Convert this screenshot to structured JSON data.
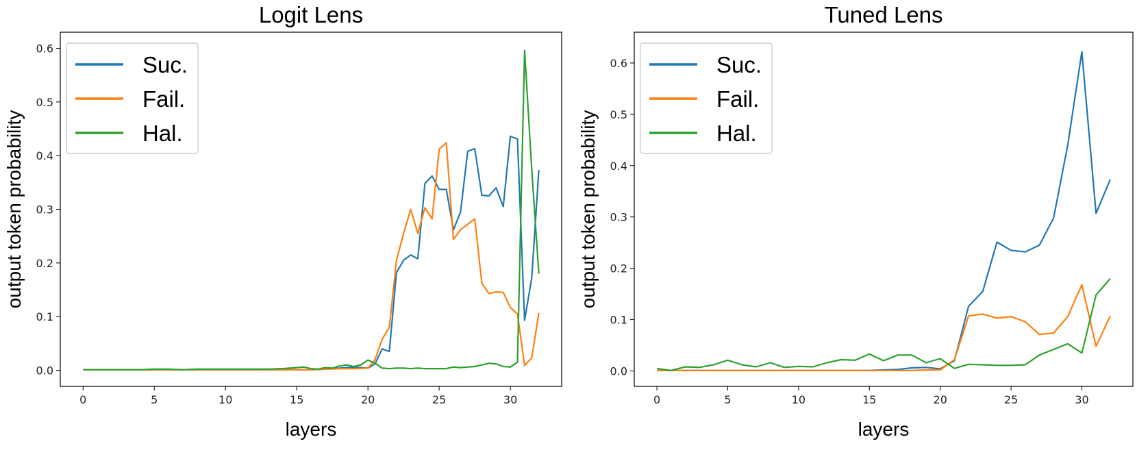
{
  "chart_data": [
    {
      "type": "line",
      "title": "Logit Lens",
      "xlabel": "layers",
      "ylabel": "output token probability",
      "xlim": [
        -1.6,
        33.6
      ],
      "ylim": [
        -0.03,
        0.63
      ],
      "xticks": [
        0,
        5,
        10,
        15,
        20,
        25,
        30
      ],
      "xtick_labels": [
        "0",
        "5",
        "10",
        "15",
        "20",
        "25",
        "30"
      ],
      "yticks": [
        0.0,
        0.1,
        0.2,
        0.3,
        0.4,
        0.5,
        0.6
      ],
      "ytick_labels": [
        "0.0",
        "0.1",
        "0.2",
        "0.3",
        "0.4",
        "0.5",
        "0.6"
      ],
      "grid": false,
      "legend": "upper-left",
      "series": [
        {
          "name": "Suc.",
          "color": "#1f77b4",
          "x": [
            0,
            1,
            2,
            3,
            4,
            5,
            6,
            7,
            8,
            9,
            10,
            11,
            12,
            13,
            14,
            15,
            16,
            17,
            18,
            19,
            20,
            20.5,
            21,
            21.5,
            22,
            22.5,
            23,
            23.5,
            24,
            24.5,
            25,
            25.5,
            26,
            26.5,
            27,
            27.5,
            28,
            28.5,
            29,
            29.5,
            30,
            30.5,
            31,
            31.5,
            32
          ],
          "y": [
            0.001,
            0.001,
            0.001,
            0.001,
            0.001,
            0.001,
            0.001,
            0.001,
            0.001,
            0.001,
            0.001,
            0.001,
            0.001,
            0.001,
            0.001,
            0.001,
            0.001,
            0.002,
            0.004,
            0.006,
            0.004,
            0.012,
            0.04,
            0.035,
            0.182,
            0.205,
            0.215,
            0.208,
            0.348,
            0.362,
            0.337,
            0.337,
            0.262,
            0.295,
            0.408,
            0.413,
            0.326,
            0.325,
            0.34,
            0.305,
            0.436,
            0.431,
            0.093,
            0.172,
            0.373
          ]
        },
        {
          "name": "Fail.",
          "color": "#ff7f0e",
          "x": [
            0,
            1,
            2,
            3,
            4,
            5,
            6,
            7,
            8,
            9,
            10,
            11,
            12,
            13,
            14,
            15,
            16,
            17,
            18,
            19,
            20,
            20.5,
            21,
            21.5,
            22,
            22.5,
            23,
            23.5,
            24,
            24.5,
            25,
            25.5,
            26,
            26.5,
            27,
            27.5,
            28,
            28.5,
            29,
            29.5,
            30,
            30.5,
            31,
            31.5,
            32
          ],
          "y": [
            0.001,
            0.001,
            0.001,
            0.001,
            0.001,
            0.001,
            0.001,
            0.001,
            0.001,
            0.001,
            0.001,
            0.001,
            0.001,
            0.001,
            0.001,
            0.001,
            0.001,
            0.002,
            0.003,
            0.003,
            0.004,
            0.02,
            0.058,
            0.08,
            0.205,
            0.255,
            0.3,
            0.255,
            0.303,
            0.282,
            0.412,
            0.424,
            0.244,
            0.262,
            0.272,
            0.282,
            0.162,
            0.143,
            0.146,
            0.145,
            0.117,
            0.105,
            0.009,
            0.023,
            0.107
          ]
        },
        {
          "name": "Hal.",
          "color": "#2ca02c",
          "x": [
            0,
            1,
            2,
            3,
            4,
            5,
            6,
            7,
            8,
            9,
            10,
            11,
            12,
            13,
            14,
            15,
            15.5,
            16,
            16.5,
            17,
            17.5,
            18,
            18.5,
            19,
            19.5,
            20,
            20.5,
            21,
            21.5,
            22,
            22.5,
            23,
            23.5,
            24,
            24.5,
            25,
            25.5,
            26,
            26.5,
            27,
            27.5,
            28,
            28.5,
            29,
            29.5,
            30,
            30.5,
            31,
            31.5,
            32
          ],
          "y": [
            0.001,
            0.001,
            0.001,
            0.001,
            0.001,
            0.002,
            0.002,
            0.001,
            0.002,
            0.002,
            0.002,
            0.002,
            0.002,
            0.002,
            0.003,
            0.005,
            0.006,
            0.003,
            0.002,
            0.005,
            0.004,
            0.008,
            0.01,
            0.007,
            0.01,
            0.019,
            0.013,
            0.004,
            0.003,
            0.004,
            0.004,
            0.003,
            0.004,
            0.003,
            0.003,
            0.003,
            0.003,
            0.006,
            0.005,
            0.006,
            0.007,
            0.01,
            0.013,
            0.012,
            0.007,
            0.006,
            0.015,
            0.596,
            0.375,
            0.18
          ]
        }
      ]
    },
    {
      "type": "line",
      "title": "Tuned Lens",
      "xlabel": "layers",
      "ylabel": "output token probability",
      "xlim": [
        -1.6,
        33.6
      ],
      "ylim": [
        -0.03,
        0.66
      ],
      "xticks": [
        0,
        5,
        10,
        15,
        20,
        25,
        30
      ],
      "xtick_labels": [
        "0",
        "5",
        "10",
        "15",
        "20",
        "25",
        "30"
      ],
      "yticks": [
        0.0,
        0.1,
        0.2,
        0.3,
        0.4,
        0.5,
        0.6
      ],
      "ytick_labels": [
        "0.0",
        "0.1",
        "0.2",
        "0.3",
        "0.4",
        "0.5",
        "0.6"
      ],
      "grid": false,
      "legend": "upper-left",
      "series": [
        {
          "name": "Suc.",
          "color": "#1f77b4",
          "x": [
            0,
            1,
            2,
            3,
            4,
            5,
            6,
            7,
            8,
            9,
            10,
            11,
            12,
            13,
            14,
            15,
            16,
            17,
            18,
            19,
            20,
            21,
            22,
            23,
            24,
            25,
            26,
            27,
            28,
            29,
            30,
            31,
            32
          ],
          "y": [
            0.001,
            0.001,
            0.001,
            0.001,
            0.001,
            0.001,
            0.001,
            0.001,
            0.001,
            0.001,
            0.001,
            0.001,
            0.001,
            0.001,
            0.001,
            0.001,
            0.002,
            0.003,
            0.006,
            0.007,
            0.004,
            0.02,
            0.126,
            0.155,
            0.251,
            0.235,
            0.232,
            0.245,
            0.298,
            0.44,
            0.622,
            0.307,
            0.373
          ]
        },
        {
          "name": "Fail.",
          "color": "#ff7f0e",
          "x": [
            0,
            1,
            2,
            3,
            4,
            5,
            6,
            7,
            8,
            9,
            10,
            11,
            12,
            13,
            14,
            15,
            16,
            17,
            18,
            19,
            20,
            21,
            22,
            23,
            24,
            25,
            26,
            27,
            28,
            29,
            30,
            31,
            32
          ],
          "y": [
            0.001,
            0.001,
            0.001,
            0.001,
            0.001,
            0.001,
            0.001,
            0.001,
            0.001,
            0.001,
            0.001,
            0.001,
            0.001,
            0.001,
            0.001,
            0.001,
            0.001,
            0.001,
            0.001,
            0.002,
            0.002,
            0.022,
            0.107,
            0.111,
            0.103,
            0.106,
            0.096,
            0.071,
            0.074,
            0.106,
            0.168,
            0.048,
            0.107
          ]
        },
        {
          "name": "Hal.",
          "color": "#2ca02c",
          "x": [
            0,
            1,
            2,
            3,
            4,
            5,
            6,
            7,
            8,
            9,
            10,
            11,
            12,
            13,
            14,
            15,
            16,
            17,
            18,
            19,
            20,
            21,
            22,
            23,
            24,
            25,
            26,
            27,
            28,
            29,
            30,
            31,
            32
          ],
          "y": [
            0.005,
            0.001,
            0.008,
            0.007,
            0.012,
            0.021,
            0.012,
            0.008,
            0.016,
            0.007,
            0.009,
            0.008,
            0.016,
            0.022,
            0.021,
            0.033,
            0.02,
            0.031,
            0.031,
            0.016,
            0.024,
            0.005,
            0.013,
            0.012,
            0.011,
            0.011,
            0.012,
            0.031,
            0.042,
            0.053,
            0.035,
            0.148,
            0.18
          ]
        }
      ]
    }
  ]
}
